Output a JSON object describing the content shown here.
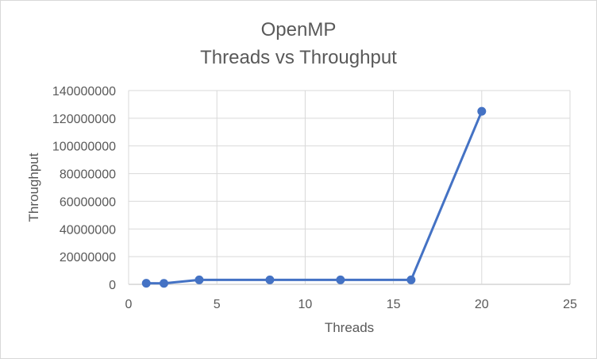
{
  "chart_data": {
    "type": "scatter",
    "title_lines": [
      "OpenMP",
      "Threads vs Throughput"
    ],
    "xlabel": "Threads",
    "ylabel": "Throughput",
    "xlim": [
      0,
      25
    ],
    "ylim": [
      0,
      140000000
    ],
    "x_ticks": [
      0,
      5,
      10,
      15,
      20,
      25
    ],
    "y_ticks": [
      0,
      20000000,
      40000000,
      60000000,
      80000000,
      100000000,
      120000000,
      140000000
    ],
    "grid": true,
    "legend": "none",
    "series": [
      {
        "color": "#4472c4",
        "x": [
          1,
          2,
          4,
          8,
          12,
          16,
          20
        ],
        "y": [
          800000,
          700000,
          3200000,
          3200000,
          3200000,
          3200000,
          125000000
        ]
      }
    ]
  }
}
